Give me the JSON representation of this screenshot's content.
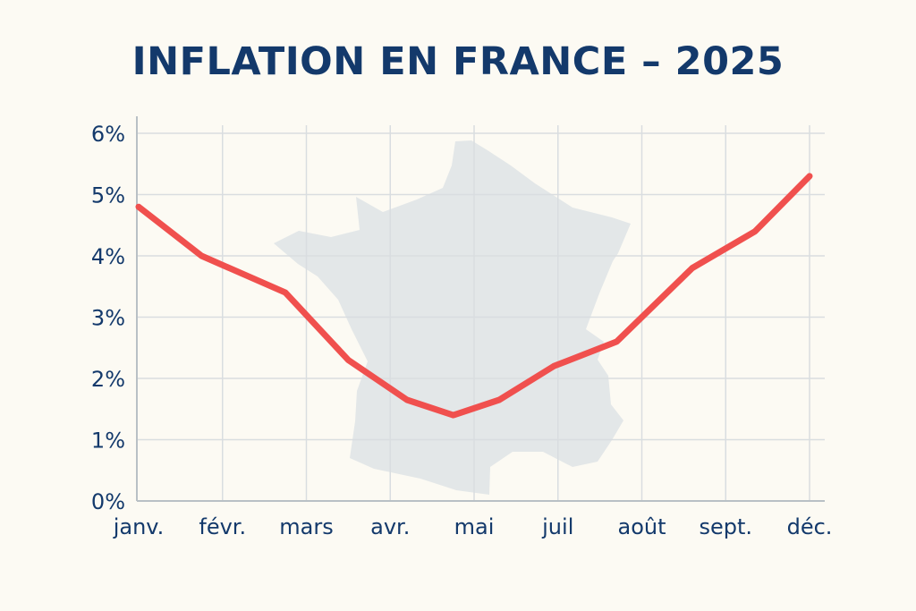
{
  "colors": {
    "background": "#fcfaf3",
    "title": "#13396b",
    "labels": "#13396b",
    "grid": "#d9dde0",
    "axis": "#b9c0c5",
    "line": "#f0504e",
    "map": "#e3e7e8"
  },
  "background_icon": "france-map-silhouette",
  "chart_data": {
    "type": "line",
    "title": "INFLATION EN FRANCE – 2025",
    "xlabel": "",
    "ylabel": "",
    "categories": [
      "janv.",
      "févr.",
      "mars",
      "avr.",
      "mai",
      "juil",
      "août",
      "sept.",
      "déc."
    ],
    "ylim": [
      0,
      6
    ],
    "yticks": [
      "0%",
      "1%",
      "2%",
      "3%",
      "4%",
      "5%",
      "6%"
    ],
    "grid": true,
    "legend": "none",
    "series": [
      {
        "x": [
          0,
          0.75,
          1.75,
          2.5,
          3.2,
          3.75,
          4.3,
          4.95,
          5.7,
          6.6,
          7.35,
          8.0
        ],
        "values": [
          4.8,
          4.0,
          3.4,
          2.3,
          1.65,
          1.4,
          1.65,
          2.2,
          2.6,
          3.8,
          4.4,
          5.3
        ]
      }
    ]
  }
}
